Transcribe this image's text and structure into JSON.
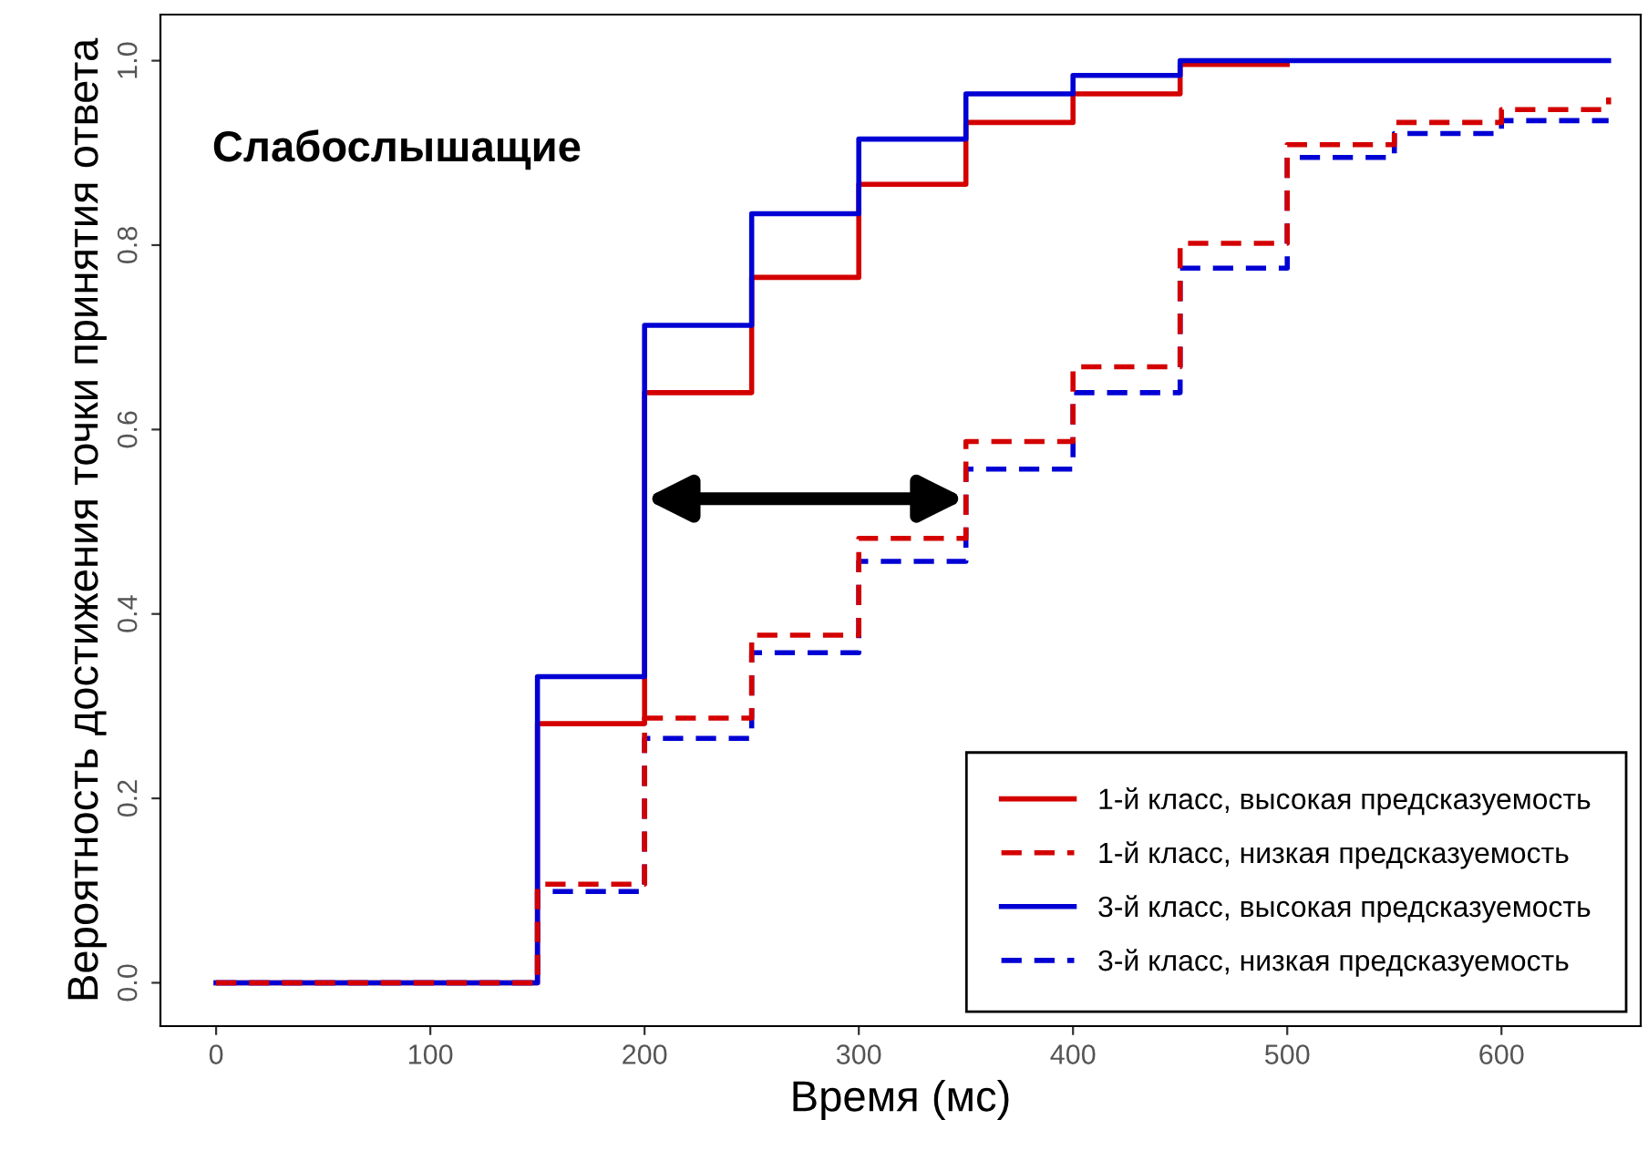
{
  "chart_data": {
    "type": "step",
    "xlabel": "Время (мс)",
    "ylabel": "Вероятность достижения точки принятия ответа",
    "annotations": [
      "Слабослышащие"
    ],
    "xlim": [
      -26,
      665
    ],
    "ylim": [
      -0.047,
      1.05
    ],
    "xticks": [
      0,
      100,
      200,
      300,
      400,
      500,
      600
    ],
    "yticks": [
      {
        "value": 0,
        "label": "0.0"
      },
      {
        "value": 0.2,
        "label": "0.2"
      },
      {
        "value": 0.4,
        "label": "0.4"
      },
      {
        "value": 0.6,
        "label": "0.6"
      },
      {
        "value": 0.8,
        "label": "0.8"
      },
      {
        "value": 1,
        "label": "1.0"
      }
    ],
    "grid": false,
    "legend": "bottom right",
    "marker": "none",
    "series": [
      {
        "name": "1-й класс, высокая предсказуемость",
        "color": "#d40000",
        "line_style": "solid",
        "x": [
          0,
          150,
          200,
          250,
          300,
          350,
          400,
          450,
          500
        ],
        "values": [
          0,
          0.281,
          0.64,
          0.765,
          0.866,
          0.933,
          0.964,
          0.996,
          0.996
        ]
      },
      {
        "name": "1-й класс, низкая предсказуемость",
        "color": "#d40000",
        "line_style": "dashed",
        "x": [
          0,
          150,
          200,
          250,
          300,
          350,
          400,
          450,
          500,
          550,
          600,
          650
        ],
        "values": [
          0,
          0.107,
          0.287,
          0.377,
          0.482,
          0.587,
          0.668,
          0.802,
          0.909,
          0.933,
          0.947,
          0.96
        ]
      },
      {
        "name": "3-й класс, высокая предсказуемость",
        "color": "#0000d4",
        "line_style": "solid",
        "x": [
          0,
          150,
          200,
          250,
          300,
          350,
          400,
          450,
          650
        ],
        "values": [
          0,
          0.332,
          0.713,
          0.834,
          0.915,
          0.964,
          0.984,
          1.0,
          1.0
        ]
      },
      {
        "name": "3-й класс, низкая предсказуемость",
        "color": "#0000d4",
        "line_style": "dashed",
        "x": [
          0,
          150,
          200,
          250,
          300,
          350,
          400,
          450,
          500,
          550,
          600,
          650
        ],
        "values": [
          0,
          0.099,
          0.265,
          0.358,
          0.457,
          0.557,
          0.64,
          0.775,
          0.895,
          0.921,
          0.935,
          0.935
        ]
      }
    ]
  }
}
